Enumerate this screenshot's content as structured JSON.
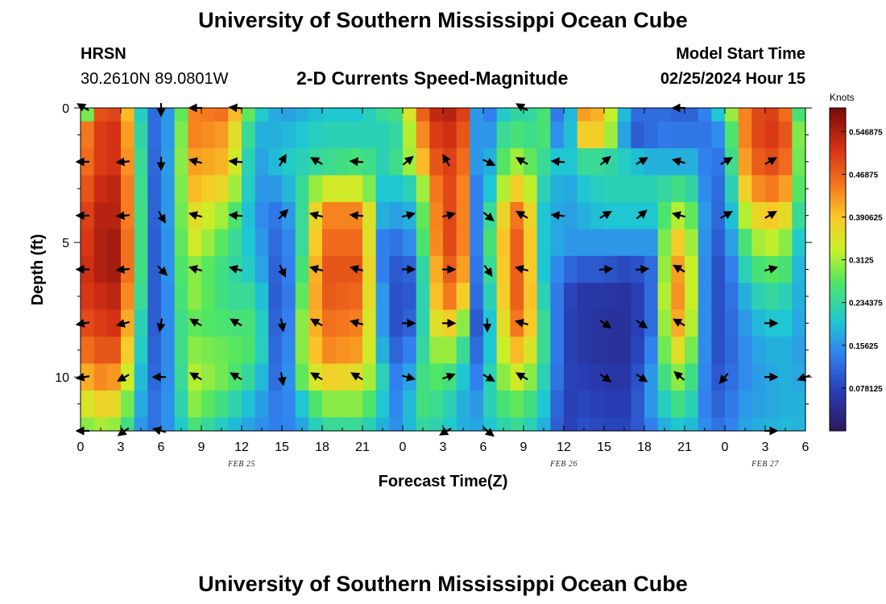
{
  "header": {
    "title": "University of Southern Mississippi Ocean Cube",
    "station": "HRSN",
    "coords": "30.2610N  89.0801W",
    "plot_title": "2-D Currents Speed-Magnitude",
    "model_label": "Model Start Time",
    "model_time": "02/25/2024 Hour 15"
  },
  "footer": {
    "title": "University of Southern Mississippi Ocean Cube"
  },
  "colors": {
    "arrow": "#000000",
    "background": "#ffffff"
  },
  "chart_data": {
    "type": "heatmap",
    "title": "2-D Currents Speed-Magnitude",
    "xlabel": "Forecast Time(Z)",
    "ylabel": "Depth (ft)",
    "x_tick_labels": [
      "0",
      "3",
      "6",
      "9",
      "12",
      "15",
      "18",
      "21",
      "0",
      "3",
      "6",
      "9",
      "12",
      "15",
      "18",
      "21",
      "0",
      "3",
      "6"
    ],
    "x_tick_hours": [
      0,
      3,
      6,
      9,
      12,
      15,
      18,
      21,
      24,
      27,
      30,
      33,
      36,
      39,
      42,
      45,
      48,
      51,
      54
    ],
    "date_labels": [
      {
        "text": "FEB 25",
        "hour": 12
      },
      {
        "text": "FEB 26",
        "hour": 36
      },
      {
        "text": "FEB 27",
        "hour": 51
      }
    ],
    "xlim": [
      0,
      54
    ],
    "y_tick_labels": [
      "0",
      "5",
      "10"
    ],
    "y_tick_values": [
      0,
      5,
      10
    ],
    "ylim": [
      0,
      12
    ],
    "colorbar": {
      "unit": "Knots",
      "min": 0,
      "max": 0.59,
      "tick_labels": [
        "0.078125",
        "0.15625",
        "0.234375",
        "0.3125",
        "0.390625",
        "0.46875",
        "0.546875"
      ],
      "tick_values": [
        0.078125,
        0.15625,
        0.234375,
        0.3125,
        0.390625,
        0.46875,
        0.546875
      ]
    },
    "speed_profile": {
      "depths_ft": [
        0,
        1,
        2,
        3,
        4,
        5,
        6,
        7,
        8,
        9,
        10,
        11,
        12
      ],
      "anchors": [
        {
          "hour": 0,
          "values": [
            0.1,
            0.4,
            0.42,
            0.44,
            0.46,
            0.48,
            0.5,
            0.5,
            0.48,
            0.44,
            0.38,
            0.32,
            0.28
          ]
        },
        {
          "hour": 1,
          "values": [
            0.48,
            0.5,
            0.5,
            0.52,
            0.54,
            0.54,
            0.54,
            0.52,
            0.5,
            0.48,
            0.44,
            0.38,
            0.32
          ]
        },
        {
          "hour": 3,
          "values": [
            0.5,
            0.52,
            0.52,
            0.54,
            0.54,
            0.56,
            0.56,
            0.54,
            0.52,
            0.48,
            0.42,
            0.36,
            0.3
          ]
        },
        {
          "hour": 4,
          "values": [
            0.3,
            0.32,
            0.34,
            0.35,
            0.35,
            0.35,
            0.35,
            0.33,
            0.3,
            0.28,
            0.25,
            0.22,
            0.2
          ]
        },
        {
          "hour": 5,
          "values": [
            0.12,
            0.14,
            0.14,
            0.14,
            0.15,
            0.15,
            0.15,
            0.15,
            0.14,
            0.14,
            0.13,
            0.13,
            0.12
          ]
        },
        {
          "hour": 6,
          "values": [
            0.12,
            0.1,
            0.09,
            0.08,
            0.07,
            0.06,
            0.06,
            0.06,
            0.07,
            0.08,
            0.1,
            0.12,
            0.13
          ]
        },
        {
          "hour": 7,
          "values": [
            0.2,
            0.22,
            0.24,
            0.24,
            0.25,
            0.25,
            0.25,
            0.24,
            0.23,
            0.22,
            0.2,
            0.19,
            0.18
          ]
        },
        {
          "hour": 8.5,
          "values": [
            0.44,
            0.44,
            0.42,
            0.4,
            0.36,
            0.34,
            0.3,
            0.3,
            0.28,
            0.3,
            0.32,
            0.3,
            0.26
          ]
        },
        {
          "hour": 11,
          "values": [
            0.46,
            0.42,
            0.4,
            0.36,
            0.3,
            0.26,
            0.24,
            0.24,
            0.26,
            0.28,
            0.28,
            0.24,
            0.2
          ]
        },
        {
          "hour": 13,
          "values": [
            0.22,
            0.18,
            0.16,
            0.16,
            0.16,
            0.18,
            0.2,
            0.24,
            0.26,
            0.26,
            0.22,
            0.18,
            0.16
          ]
        },
        {
          "hour": 15,
          "values": [
            0.16,
            0.18,
            0.2,
            0.16,
            0.12,
            0.1,
            0.08,
            0.06,
            0.06,
            0.07,
            0.09,
            0.12,
            0.13
          ]
        },
        {
          "hour": 16.5,
          "values": [
            0.18,
            0.2,
            0.22,
            0.24,
            0.24,
            0.24,
            0.26,
            0.28,
            0.3,
            0.3,
            0.28,
            0.2,
            0.17
          ]
        },
        {
          "hour": 18,
          "values": [
            0.2,
            0.22,
            0.24,
            0.34,
            0.44,
            0.46,
            0.48,
            0.48,
            0.46,
            0.44,
            0.38,
            0.3,
            0.24
          ]
        },
        {
          "hour": 21,
          "values": [
            0.2,
            0.22,
            0.26,
            0.34,
            0.44,
            0.46,
            0.48,
            0.46,
            0.44,
            0.42,
            0.36,
            0.3,
            0.24
          ]
        },
        {
          "hour": 22.5,
          "values": [
            0.24,
            0.22,
            0.22,
            0.2,
            0.18,
            0.14,
            0.14,
            0.16,
            0.16,
            0.18,
            0.22,
            0.2,
            0.18
          ]
        },
        {
          "hour": 24,
          "values": [
            0.26,
            0.24,
            0.26,
            0.2,
            0.16,
            0.12,
            0.08,
            0.06,
            0.06,
            0.08,
            0.1,
            0.12,
            0.14
          ]
        },
        {
          "hour": 25,
          "values": [
            0.44,
            0.4,
            0.36,
            0.24,
            0.2,
            0.18,
            0.14,
            0.14,
            0.16,
            0.2,
            0.24,
            0.26,
            0.24
          ]
        },
        {
          "hour": 27,
          "values": [
            0.56,
            0.54,
            0.52,
            0.52,
            0.52,
            0.52,
            0.5,
            0.48,
            0.42,
            0.34,
            0.28,
            0.24,
            0.22
          ]
        },
        {
          "hour": 28.5,
          "values": [
            0.5,
            0.48,
            0.46,
            0.44,
            0.44,
            0.44,
            0.42,
            0.38,
            0.3,
            0.24,
            0.2,
            0.18,
            0.18
          ]
        },
        {
          "hour": 29.5,
          "values": [
            0.16,
            0.16,
            0.16,
            0.14,
            0.14,
            0.14,
            0.13,
            0.12,
            0.1,
            0.12,
            0.14,
            0.16,
            0.17
          ]
        },
        {
          "hour": 30.5,
          "values": [
            0.14,
            0.16,
            0.18,
            0.2,
            0.24,
            0.26,
            0.24,
            0.22,
            0.2,
            0.2,
            0.22,
            0.22,
            0.2
          ]
        },
        {
          "hour": 32,
          "values": [
            0.24,
            0.28,
            0.32,
            0.38,
            0.44,
            0.46,
            0.46,
            0.46,
            0.44,
            0.4,
            0.34,
            0.28,
            0.24
          ]
        },
        {
          "hour": 33,
          "values": [
            0.22,
            0.24,
            0.3,
            0.38,
            0.46,
            0.48,
            0.48,
            0.48,
            0.46,
            0.4,
            0.34,
            0.28,
            0.24
          ]
        },
        {
          "hour": 34.5,
          "values": [
            0.26,
            0.26,
            0.24,
            0.22,
            0.2,
            0.2,
            0.2,
            0.22,
            0.24,
            0.24,
            0.22,
            0.2,
            0.18
          ]
        },
        {
          "hour": 36,
          "values": [
            0.07,
            0.1,
            0.18,
            0.16,
            0.16,
            0.16,
            0.12,
            0.09,
            0.08,
            0.08,
            0.08,
            0.07,
            0.07
          ]
        },
        {
          "hour": 37.5,
          "values": [
            0.42,
            0.38,
            0.24,
            0.2,
            0.18,
            0.16,
            0.1,
            0.06,
            0.06,
            0.06,
            0.07,
            0.08,
            0.09
          ]
        },
        {
          "hour": 39,
          "values": [
            0.4,
            0.38,
            0.24,
            0.22,
            0.2,
            0.16,
            0.1,
            0.06,
            0.05,
            0.05,
            0.06,
            0.07,
            0.08
          ]
        },
        {
          "hour": 41,
          "values": [
            0.12,
            0.1,
            0.2,
            0.22,
            0.2,
            0.16,
            0.08,
            0.05,
            0.05,
            0.05,
            0.06,
            0.07,
            0.08
          ]
        },
        {
          "hour": 42.5,
          "values": [
            0.12,
            0.12,
            0.18,
            0.22,
            0.2,
            0.16,
            0.12,
            0.12,
            0.12,
            0.14,
            0.16,
            0.16,
            0.14
          ]
        },
        {
          "hour": 44,
          "values": [
            0.12,
            0.14,
            0.18,
            0.24,
            0.3,
            0.36,
            0.4,
            0.42,
            0.4,
            0.36,
            0.3,
            0.24,
            0.2
          ]
        },
        {
          "hour": 45,
          "values": [
            0.1,
            0.12,
            0.18,
            0.26,
            0.34,
            0.4,
            0.44,
            0.44,
            0.42,
            0.36,
            0.3,
            0.26,
            0.2
          ]
        },
        {
          "hour": 46,
          "values": [
            0.12,
            0.14,
            0.18,
            0.2,
            0.22,
            0.22,
            0.22,
            0.22,
            0.22,
            0.22,
            0.2,
            0.18,
            0.18
          ]
        },
        {
          "hour": 47,
          "values": [
            0.16,
            0.12,
            0.1,
            0.1,
            0.1,
            0.09,
            0.08,
            0.08,
            0.08,
            0.08,
            0.09,
            0.1,
            0.12
          ]
        },
        {
          "hour": 48,
          "values": [
            0.24,
            0.18,
            0.16,
            0.14,
            0.13,
            0.12,
            0.1,
            0.1,
            0.1,
            0.1,
            0.11,
            0.12,
            0.13
          ]
        },
        {
          "hour": 49.5,
          "values": [
            0.44,
            0.44,
            0.42,
            0.38,
            0.32,
            0.26,
            0.22,
            0.18,
            0.16,
            0.15,
            0.15,
            0.16,
            0.17
          ]
        },
        {
          "hour": 51,
          "values": [
            0.52,
            0.52,
            0.5,
            0.46,
            0.4,
            0.34,
            0.28,
            0.24,
            0.2,
            0.18,
            0.17,
            0.17,
            0.18
          ]
        },
        {
          "hour": 52.5,
          "values": [
            0.46,
            0.48,
            0.46,
            0.42,
            0.36,
            0.3,
            0.26,
            0.22,
            0.2,
            0.18,
            0.18,
            0.18,
            0.19
          ]
        },
        {
          "hour": 54,
          "values": [
            0.16,
            0.2,
            0.2,
            0.2,
            0.18,
            0.16,
            0.15,
            0.16,
            0.16,
            0.16,
            0.17,
            0.18,
            0.18
          ]
        }
      ]
    },
    "arrow_rows_ft": [
      0,
      2,
      4,
      6,
      8,
      10,
      12
    ],
    "arrow_columns": [
      {
        "hour": 0.3,
        "dirs": [
          300,
          270,
          270,
          270,
          260,
          260,
          270
        ]
      },
      {
        "hour": 3.3,
        "dirs": [
          null,
          265,
          265,
          265,
          255,
          240,
          235
        ]
      },
      {
        "hour": 6,
        "dirs": [
          180,
          180,
          150,
          135,
          190,
          270,
          285
        ]
      },
      {
        "hour": 8.7,
        "dirs": [
          270,
          285,
          285,
          285,
          300,
          300,
          null
        ]
      },
      {
        "hour": 11.7,
        "dirs": [
          275,
          275,
          275,
          285,
          300,
          300,
          null
        ]
      },
      {
        "hour": 15,
        "dirs": [
          null,
          30,
          45,
          155,
          170,
          170,
          null
        ]
      },
      {
        "hour": 17.7,
        "dirs": [
          null,
          300,
          285,
          285,
          300,
          300,
          null
        ]
      },
      {
        "hour": 20.7,
        "dirs": [
          null,
          275,
          275,
          285,
          285,
          300,
          null
        ]
      },
      {
        "hour": 24.3,
        "dirs": [
          null,
          50,
          75,
          90,
          90,
          105,
          null
        ]
      },
      {
        "hour": 27.3,
        "dirs": [
          null,
          330,
          75,
          90,
          90,
          70,
          240
        ]
      },
      {
        "hour": 30.3,
        "dirs": [
          null,
          115,
          130,
          145,
          180,
          120,
          130
        ]
      },
      {
        "hour": 33,
        "dirs": [
          300,
          300,
          300,
          285,
          285,
          300,
          null
        ]
      },
      {
        "hour": 35.7,
        "dirs": [
          null,
          275,
          275,
          null,
          null,
          null,
          null
        ]
      },
      {
        "hour": 39,
        "dirs": [
          null,
          50,
          60,
          85,
          125,
          125,
          null
        ]
      },
      {
        "hour": 41.7,
        "dirs": [
          null,
          60,
          50,
          85,
          125,
          125,
          null
        ]
      },
      {
        "hour": 44.7,
        "dirs": [
          270,
          285,
          285,
          300,
          300,
          310,
          null
        ]
      },
      {
        "hour": 48,
        "dirs": [
          null,
          60,
          60,
          null,
          null,
          220,
          null
        ]
      },
      {
        "hour": 51.3,
        "dirs": [
          null,
          60,
          60,
          75,
          90,
          90,
          90
        ]
      },
      {
        "hour": 54,
        "dirs": [
          null,
          null,
          null,
          null,
          null,
          250,
          null
        ]
      }
    ]
  }
}
